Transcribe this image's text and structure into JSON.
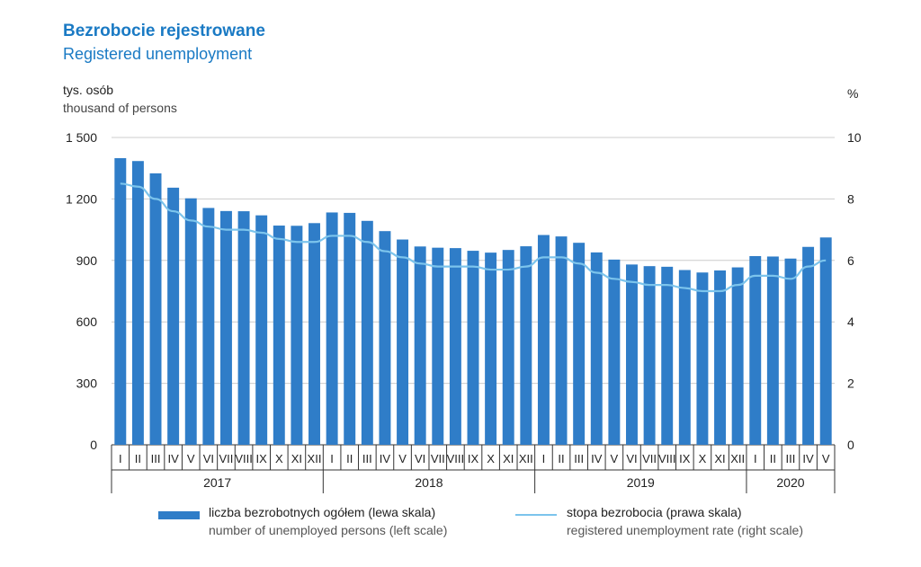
{
  "header": {
    "title": "Bezrobocie rejestrowane",
    "subtitle": "Registered unemployment",
    "left_unit_pl": "tys. osób",
    "left_unit_en": "thousand of persons",
    "right_unit": "%"
  },
  "legend": {
    "bars_pl": "liczba bezrobotnych ogółem (lewa skala)",
    "bars_en": "number of unemployed persons (left scale)",
    "line_pl": "stopa bezrobocia (prawa skala)",
    "line_en": "registered unemployment rate (right scale)"
  },
  "colors": {
    "bar": "#2f7dc8",
    "line": "#7cc4ec",
    "grid": "#cccccc",
    "title": "#1a7ac4"
  },
  "chart_data": {
    "type": "bar",
    "y_left": {
      "ylim": [
        0,
        1500
      ],
      "ticks": [
        "1 500",
        "1 200",
        "900",
        "600",
        "300",
        "0"
      ],
      "tick_values": [
        1500,
        1200,
        900,
        600,
        300,
        0
      ]
    },
    "y_right": {
      "ylim": [
        0,
        10
      ],
      "ticks": [
        "10",
        "8",
        "6",
        "4",
        "2",
        "0"
      ],
      "tick_values": [
        10,
        8,
        6,
        4,
        2,
        0
      ]
    },
    "grid": true,
    "years": [
      {
        "label": "2017",
        "months": [
          "I",
          "II",
          "III",
          "IV",
          "V",
          "VI",
          "VII",
          "VIII",
          "IX",
          "X",
          "XI",
          "XII"
        ]
      },
      {
        "label": "2018",
        "months": [
          "I",
          "II",
          "III",
          "IV",
          "V",
          "VI",
          "VII",
          "VIII",
          "IX",
          "X",
          "XI",
          "XII"
        ]
      },
      {
        "label": "2019",
        "months": [
          "I",
          "II",
          "III",
          "IV",
          "V",
          "VI",
          "VII",
          "VIII",
          "IX",
          "X",
          "XI",
          "XII"
        ]
      },
      {
        "label": "2020",
        "months": [
          "I",
          "II",
          "III",
          "IV",
          "V"
        ]
      }
    ],
    "series": [
      {
        "name": "liczba bezrobotnych ogółem (lewa skala)",
        "axis": "left",
        "kind": "bar",
        "values": [
          1399,
          1385,
          1325,
          1255,
          1203,
          1156,
          1141,
          1140,
          1120,
          1070,
          1069,
          1082,
          1134,
          1132,
          1093,
          1043,
          1002,
          968,
          962,
          960,
          947,
          938,
          951,
          969,
          1024,
          1017,
          986,
          939,
          904,
          880,
          872,
          869,
          853,
          841,
          851,
          866,
          921,
          919,
          909,
          966,
          1012
        ]
      },
      {
        "name": "stopa bezrobocia (prawa skala)",
        "axis": "right",
        "kind": "line",
        "values": [
          8.5,
          8.4,
          8.0,
          7.6,
          7.3,
          7.1,
          7.0,
          7.0,
          6.9,
          6.7,
          6.6,
          6.6,
          6.8,
          6.8,
          6.6,
          6.3,
          6.1,
          5.9,
          5.8,
          5.8,
          5.8,
          5.7,
          5.7,
          5.8,
          6.1,
          6.1,
          5.9,
          5.6,
          5.4,
          5.3,
          5.2,
          5.2,
          5.1,
          5.0,
          5.0,
          5.2,
          5.5,
          5.5,
          5.4,
          5.8,
          6.0
        ]
      }
    ]
  }
}
